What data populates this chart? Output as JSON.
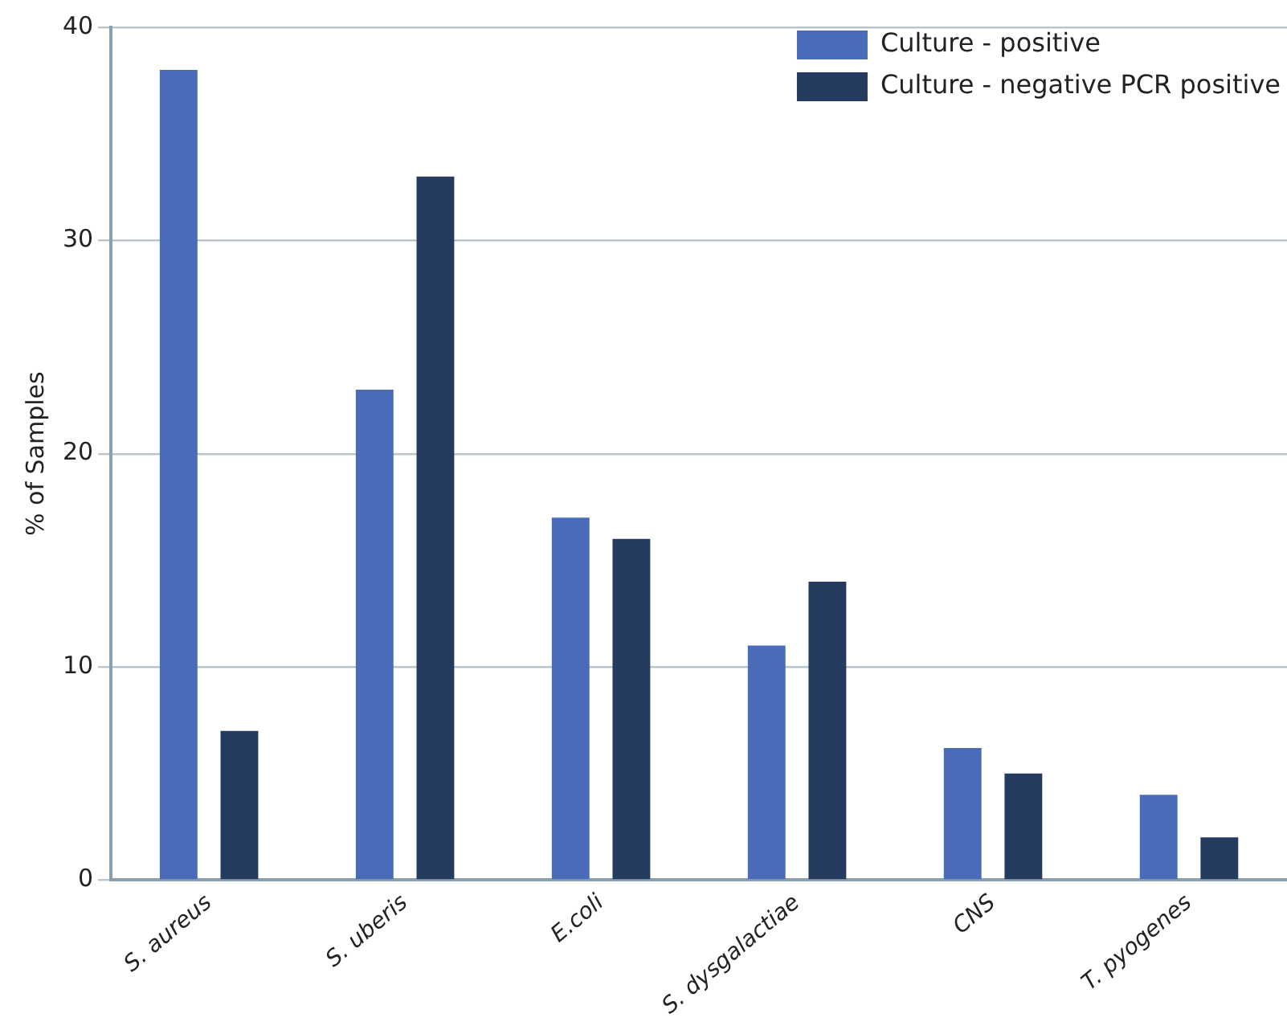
{
  "chart_data": {
    "type": "bar",
    "ylabel": "% of Samples",
    "categories": [
      "S. aureus",
      "S. uberis",
      "E.coli",
      "S. dysgalactiae",
      "CNS",
      "T. pyogenes"
    ],
    "series": [
      {
        "name": "Culture - positive",
        "color": "#4a6cb8",
        "values": [
          38,
          23,
          17,
          11,
          6.2,
          4
        ]
      },
      {
        "name": "Culture - negative PCR positive",
        "color": "#243a5e",
        "values": [
          7,
          33,
          16,
          14,
          5,
          2
        ]
      }
    ],
    "ylim": [
      0,
      40
    ],
    "yticks": [
      0,
      10,
      20,
      30,
      40
    ],
    "grid": "y",
    "legend": "top right"
  }
}
